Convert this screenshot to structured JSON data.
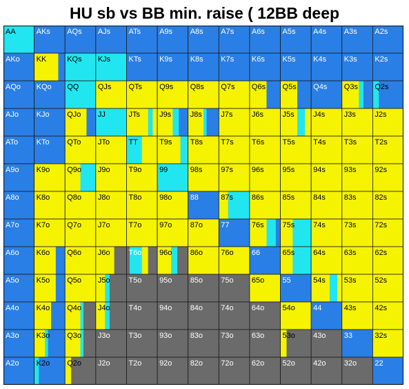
{
  "title": "HU sb vs BB min. raise ( 12BB deep",
  "legend_colors": {
    "blue": "#2a7fe6",
    "yellow": "#f5f300",
    "cyan": "#22e6ef",
    "gray": "#6b6b6b"
  },
  "chart_data": {
    "type": "heatmap",
    "title": "HU sb vs BB min. raise ( 12BB deep",
    "ranks": [
      "A",
      "K",
      "Q",
      "J",
      "T",
      "9",
      "8",
      "7",
      "6",
      "5",
      "4",
      "3",
      "2"
    ],
    "hands": [
      [
        "AA",
        "AKs",
        "AQs",
        "AJs",
        "ATs",
        "A9s",
        "A8s",
        "A7s",
        "A6s",
        "A5s",
        "A4s",
        "A3s",
        "A2s"
      ],
      [
        "AKo",
        "KK",
        "KQs",
        "KJs",
        "KTs",
        "K9s",
        "K8s",
        "K7s",
        "K6s",
        "K5s",
        "K4s",
        "K3s",
        "K2s"
      ],
      [
        "AQo",
        "KQo",
        "QQ",
        "QJs",
        "QTs",
        "Q9s",
        "Q8s",
        "Q7s",
        "Q6s",
        "Q5s",
        "Q4s",
        "Q3s",
        "Q2s"
      ],
      [
        "AJo",
        "KJo",
        "QJo",
        "JJ",
        "JTs",
        "J9s",
        "J8s",
        "J7s",
        "J6s",
        "J5s",
        "J4s",
        "J3s",
        "J2s"
      ],
      [
        "ATo",
        "KTo",
        "QTo",
        "JTo",
        "TT",
        "T9s",
        "T8s",
        "T7s",
        "T6s",
        "T5s",
        "T4s",
        "T3s",
        "T2s"
      ],
      [
        "A9o",
        "K9o",
        "Q9o",
        "J9o",
        "T9o",
        "99",
        "98s",
        "97s",
        "96s",
        "95s",
        "94s",
        "93s",
        "92s"
      ],
      [
        "A8o",
        "K8o",
        "Q8o",
        "J8o",
        "T8o",
        "98o",
        "88",
        "87s",
        "86s",
        "85s",
        "84s",
        "83s",
        "82s"
      ],
      [
        "A7o",
        "K7o",
        "Q7o",
        "J7o",
        "T7o",
        "97o",
        "87o",
        "77",
        "76s",
        "75s",
        "74s",
        "73s",
        "72s"
      ],
      [
        "A6o",
        "K6o",
        "Q6o",
        "J6o",
        "T6o",
        "96o",
        "86o",
        "76o",
        "66",
        "65s",
        "64s",
        "63s",
        "62s"
      ],
      [
        "A5o",
        "K5o",
        "Q5o",
        "J5o",
        "T5o",
        "95o",
        "85o",
        "75o",
        "65o",
        "55",
        "54s",
        "53s",
        "52s"
      ],
      [
        "A4o",
        "K4o",
        "Q4o",
        "J4o",
        "T4o",
        "94o",
        "84o",
        "74o",
        "64o",
        "54o",
        "44",
        "43s",
        "42s"
      ],
      [
        "A3o",
        "K3o",
        "Q3o",
        "J3o",
        "T3o",
        "93o",
        "83o",
        "73o",
        "63o",
        "53o",
        "43o",
        "33",
        "32s"
      ],
      [
        "A2o",
        "K2o",
        "Q2o",
        "J2o",
        "T2o",
        "92o",
        "82o",
        "72o",
        "62o",
        "52o",
        "42o",
        "32o",
        "22"
      ]
    ],
    "cells": [
      [
        [
          "C"
        ],
        [
          "B"
        ],
        [
          "B"
        ],
        [
          "B"
        ],
        [
          "B"
        ],
        [
          "B"
        ],
        [
          "B"
        ],
        [
          "B"
        ],
        [
          "B"
        ],
        [
          "B"
        ],
        [
          "B"
        ],
        [
          "B"
        ],
        [
          "B"
        ]
      ],
      [
        [
          "B"
        ],
        [
          "Y",
          0.78,
          "B",
          0.22
        ],
        [
          "C"
        ],
        [
          "C"
        ],
        [
          "B"
        ],
        [
          "B"
        ],
        [
          "B"
        ],
        [
          "B"
        ],
        [
          "B"
        ],
        [
          "B"
        ],
        [
          "B"
        ],
        [
          "B"
        ],
        [
          "B"
        ]
      ],
      [
        [
          "B"
        ],
        [
          "B"
        ],
        [
          "C"
        ],
        [
          "Y"
        ],
        [
          "Y"
        ],
        [
          "Y"
        ],
        [
          "Y"
        ],
        [
          "Y"
        ],
        [
          "Y",
          0.55,
          "B",
          0.45
        ],
        [
          "Y",
          0.55,
          "B",
          0.45
        ],
        [
          "B"
        ],
        [
          "Y",
          0.55,
          "C",
          0.15,
          "B",
          0.3
        ],
        [
          "C",
          0.2,
          "B",
          0.8
        ]
      ],
      [
        [
          "B"
        ],
        [
          "B"
        ],
        [
          "Y",
          0.7,
          "B",
          0.3
        ],
        [
          "C"
        ],
        [
          "Y",
          0.7,
          "C",
          0.15,
          "Y",
          0.15
        ],
        [
          "Y",
          0.5,
          "C",
          0.2,
          "B",
          0.3
        ],
        [
          "Y",
          0.5,
          "C",
          0.1,
          "B",
          0.4
        ],
        [
          "Y"
        ],
        [
          "Y"
        ],
        [
          "Y",
          0.55,
          "C",
          0.25,
          "Y",
          0.2
        ],
        [
          "Y"
        ],
        [
          "Y"
        ],
        [
          "Y"
        ]
      ],
      [
        [
          "B"
        ],
        [
          "B"
        ],
        [
          "Y"
        ],
        [
          "Y"
        ],
        [
          "C",
          0.5,
          "Y",
          0.5
        ],
        [
          "Y",
          0.75,
          "C",
          0.25
        ],
        [
          "Y"
        ],
        [
          "Y"
        ],
        [
          "Y"
        ],
        [
          "Y"
        ],
        [
          "Y"
        ],
        [
          "Y"
        ],
        [
          "Y"
        ]
      ],
      [
        [
          "B"
        ],
        [
          "Y"
        ],
        [
          "Y",
          0.5,
          "C",
          0.5
        ],
        [
          "Y"
        ],
        [
          "Y"
        ],
        [
          "C"
        ],
        [
          "Y"
        ],
        [
          "Y"
        ],
        [
          "Y"
        ],
        [
          "Y"
        ],
        [
          "Y"
        ],
        [
          "Y"
        ],
        [
          "Y"
        ]
      ],
      [
        [
          "B"
        ],
        [
          "Y"
        ],
        [
          "Y"
        ],
        [
          "Y"
        ],
        [
          "Y"
        ],
        [
          "Y"
        ],
        [
          "B"
        ],
        [
          "Y",
          0.3,
          "C",
          0.7
        ],
        [
          "Y"
        ],
        [
          "Y"
        ],
        [
          "Y"
        ],
        [
          "Y"
        ],
        [
          "Y"
        ]
      ],
      [
        [
          "B"
        ],
        [
          "Y"
        ],
        [
          "Y"
        ],
        [
          "Y"
        ],
        [
          "Y"
        ],
        [
          "Y"
        ],
        [
          "Y"
        ],
        [
          "B"
        ],
        [
          "Y",
          0.55,
          "C",
          0.3,
          "B",
          0.15
        ],
        [
          "Y",
          0.4,
          "C",
          0.6
        ],
        [
          "Y"
        ],
        [
          "Y"
        ],
        [
          "Y"
        ]
      ],
      [
        [
          "B"
        ],
        [
          "Y",
          0.7,
          "B",
          0.3
        ],
        [
          "Y"
        ],
        [
          "Y",
          0.6,
          "G",
          0.4
        ],
        [
          "G",
          0.1,
          "C",
          0.4,
          "Y",
          0.2,
          "G",
          0.3
        ],
        [
          "Y",
          0.45,
          "C",
          0.2,
          "G",
          0.35
        ],
        [
          "Y"
        ],
        [
          "Y"
        ],
        [
          "B"
        ],
        [
          "Y",
          0.4,
          "C",
          0.6
        ],
        [
          "Y"
        ],
        [
          "Y"
        ],
        [
          "Y"
        ]
      ],
      [
        [
          "B"
        ],
        [
          "Y",
          0.7,
          "B",
          0.3
        ],
        [
          "Y"
        ],
        [
          "Y",
          0.3,
          "C",
          0.15,
          "G",
          0.55
        ],
        [
          "G"
        ],
        [
          "G"
        ],
        [
          "G"
        ],
        [
          "G"
        ],
        [
          "Y"
        ],
        [
          "B"
        ],
        [
          "Y",
          0.6,
          "C",
          0.25,
          "Y",
          0.15
        ],
        [
          "Y"
        ],
        [
          "Y"
        ]
      ],
      [
        [
          "B"
        ],
        [
          "Y",
          0.55,
          "B",
          0.45
        ],
        [
          "Y",
          0.5,
          "C",
          0.1,
          "G",
          0.4
        ],
        [
          "Y",
          0.3,
          "C",
          0.15,
          "G",
          0.55
        ],
        [
          "G"
        ],
        [
          "G"
        ],
        [
          "G"
        ],
        [
          "G"
        ],
        [
          "G"
        ],
        [
          "Y"
        ],
        [
          "B"
        ],
        [
          "Y"
        ],
        [
          "Y"
        ]
      ],
      [
        [
          "B"
        ],
        [
          "Y",
          0.35,
          "C",
          0.1,
          "B",
          0.55
        ],
        [
          "Y",
          0.5,
          "C",
          0.1,
          "G",
          0.4
        ],
        [
          "G"
        ],
        [
          "G"
        ],
        [
          "G"
        ],
        [
          "G"
        ],
        [
          "G"
        ],
        [
          "G"
        ],
        [
          "Y",
          0.2,
          "G",
          0.8
        ],
        [
          "G"
        ],
        [
          "B"
        ],
        [
          "Y"
        ]
      ],
      [
        [
          "B"
        ],
        [
          "C",
          0.15,
          "B",
          0.85
        ],
        [
          "Y",
          0.2,
          "G",
          0.8
        ],
        [
          "G"
        ],
        [
          "G"
        ],
        [
          "G"
        ],
        [
          "G"
        ],
        [
          "G"
        ],
        [
          "G"
        ],
        [
          "G"
        ],
        [
          "G"
        ],
        [
          "G"
        ],
        [
          "B"
        ]
      ]
    ]
  }
}
